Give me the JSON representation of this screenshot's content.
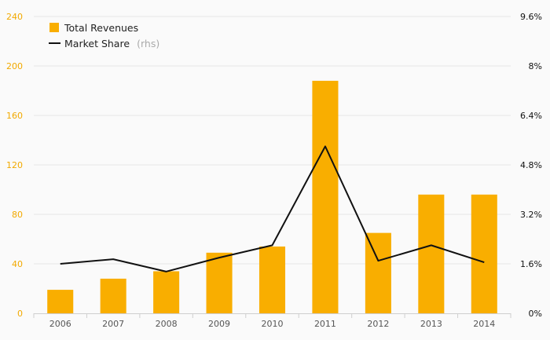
{
  "chart_data": {
    "type": "bar",
    "categories": [
      "2006",
      "2007",
      "2008",
      "2009",
      "2010",
      "2011",
      "2012",
      "2013",
      "2014"
    ],
    "series": [
      {
        "name": "Total Revenues",
        "type": "bar",
        "axis": "left",
        "color": "#f9ae00",
        "values": [
          19,
          28,
          34,
          49,
          54,
          188,
          65,
          96,
          96
        ]
      },
      {
        "name": "Market Share",
        "legend_suffix": "(rhs)",
        "type": "line",
        "axis": "right",
        "color": "#111111",
        "values": [
          1.6,
          1.75,
          1.35,
          1.8,
          2.2,
          5.4,
          1.7,
          2.2,
          1.65
        ]
      }
    ],
    "y_left": {
      "ylim": [
        0,
        240
      ],
      "ticks": [
        0,
        40,
        80,
        120,
        160,
        200,
        240
      ],
      "tick_labels": [
        "0",
        "40",
        "80",
        "120",
        "160",
        "200",
        "240"
      ],
      "color": "#f2a900"
    },
    "y_right": {
      "ylim": [
        0,
        9.6
      ],
      "ticks": [
        0,
        1.6,
        3.2,
        4.8,
        6.4,
        8,
        9.6
      ],
      "tick_labels": [
        "0%",
        "1.6%",
        "3.2%",
        "4.8%",
        "6.4%",
        "8%",
        "9.6%"
      ],
      "color": "#111111"
    },
    "grid": true,
    "legend_position": "top-left",
    "title": "",
    "xlabel": "",
    "ylabel": ""
  }
}
